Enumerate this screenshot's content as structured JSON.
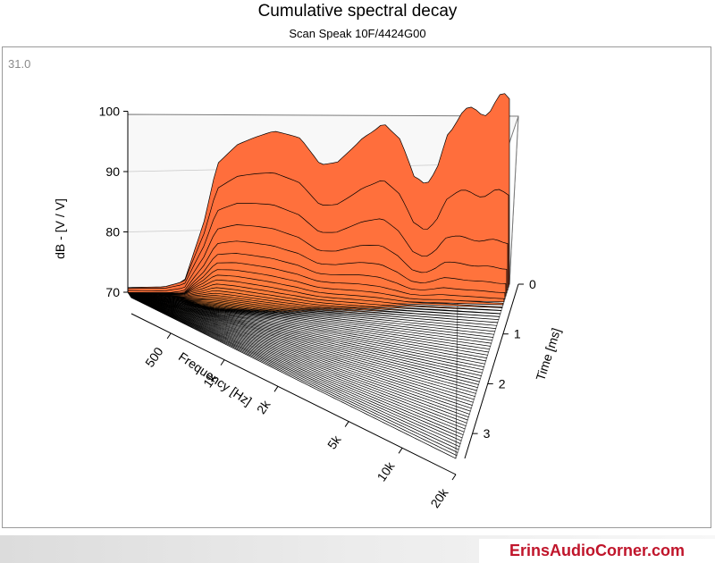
{
  "chart_data": {
    "type": "waterfall",
    "title": "Cumulative spectral decay",
    "subtitle": "Scan Speak 10F/4424G00",
    "scale_readout": "31.0",
    "z_axis": {
      "label": "dB - [V / V]",
      "range": [
        70,
        100
      ],
      "ticks": [
        "70",
        "80",
        "90",
        "100"
      ]
    },
    "x_axis": {
      "label": "Frequency [Hz]",
      "scale": "log",
      "range": [
        300,
        20000
      ],
      "ticks": [
        "500",
        "1k",
        "2k",
        "5k",
        "10k",
        "20k"
      ]
    },
    "y_axis": {
      "label": "Time [ms]",
      "range": [
        0,
        3.5
      ],
      "ticks": [
        "0",
        "1",
        "2",
        "3"
      ]
    },
    "first_slice_db": {
      "frequency_hz": [
        300,
        450,
        560,
        700,
        800,
        1000,
        1200,
        1500,
        2000,
        2500,
        3000,
        4000,
        5000,
        6000,
        7000,
        8000,
        9000,
        10000,
        12000,
        15000,
        17000,
        20000
      ],
      "level_db": [
        70,
        70,
        71,
        81,
        90,
        93,
        94,
        95,
        94,
        90,
        91,
        96,
        98,
        94,
        87,
        86,
        90,
        96,
        98,
        99,
        100,
        101
      ]
    },
    "colors": {
      "start": "#ff6e3c",
      "mid": "#ffa040",
      "end": "#ffff80",
      "edge": "#000000"
    }
  },
  "brand": {
    "text": "ErinsAudioCorner.com",
    "color": "#c0152b"
  }
}
